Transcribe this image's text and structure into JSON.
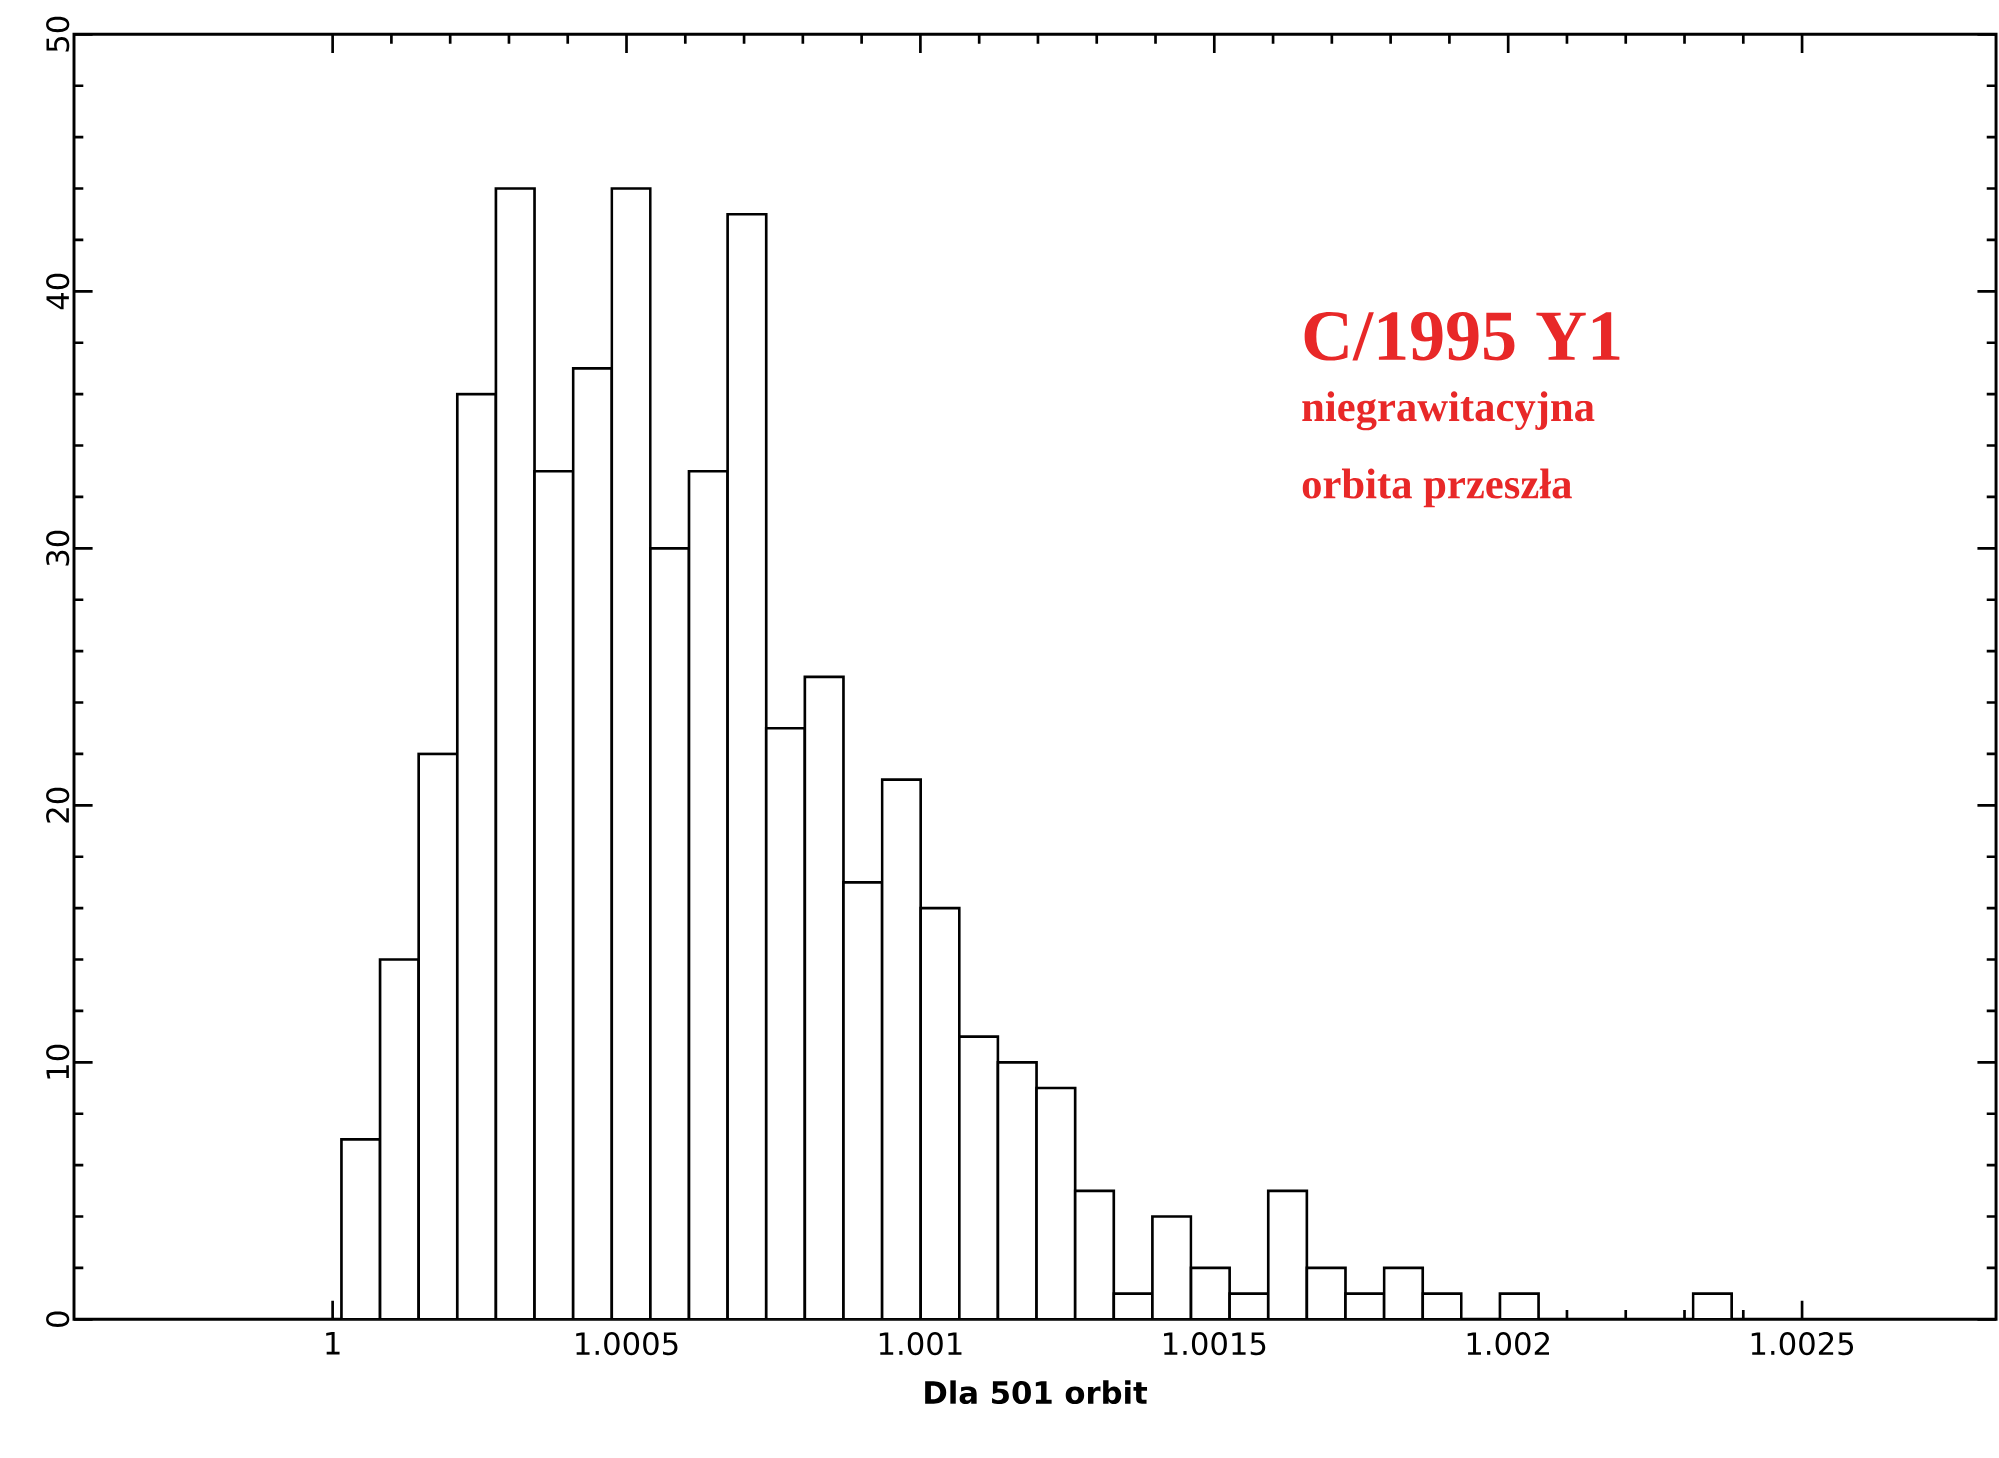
{
  "chart_data": {
    "type": "histogram",
    "xlabel": "Dla 501 orbit",
    "annotations": [
      "C/1995 Y1",
      "niegrawitacyjna",
      "orbita przeszła"
    ],
    "bins": [
      1.000015,
      1.0000807,
      1.0001464,
      1.0002121,
      1.0002778,
      1.0003435,
      1.0004092,
      1.0004749,
      1.0005406,
      1.0006063,
      1.000672,
      1.0007377,
      1.0008034,
      1.0008691,
      1.0009348,
      1.0010005,
      1.0010662,
      1.0011319,
      1.0011976,
      1.0012633,
      1.001329,
      1.0013947,
      1.0014604,
      1.0015261,
      1.0015918,
      1.0016575,
      1.0017232,
      1.0017889,
      1.0018546,
      1.0019203,
      1.001986,
      1.0020517,
      1.0021174,
      1.0021831,
      1.0022488,
      1.0023145,
      1.0023802
    ],
    "values": [
      7,
      14,
      22,
      36,
      44,
      33,
      37,
      44,
      30,
      33,
      43,
      23,
      25,
      17,
      21,
      16,
      11,
      10,
      9,
      5,
      1,
      4,
      2,
      1,
      5,
      2,
      1,
      2,
      1,
      0,
      1,
      0,
      0,
      0,
      0,
      1
    ],
    "color": "#ffffff",
    "xlim": [
      0.99956,
      1.00283
    ],
    "ylim": [
      0,
      50
    ],
    "xticks": [
      1,
      1.0005,
      1.001,
      1.0015,
      1.002,
      1.0025
    ],
    "yticks": [
      0,
      10,
      20,
      30,
      40,
      50
    ]
  }
}
